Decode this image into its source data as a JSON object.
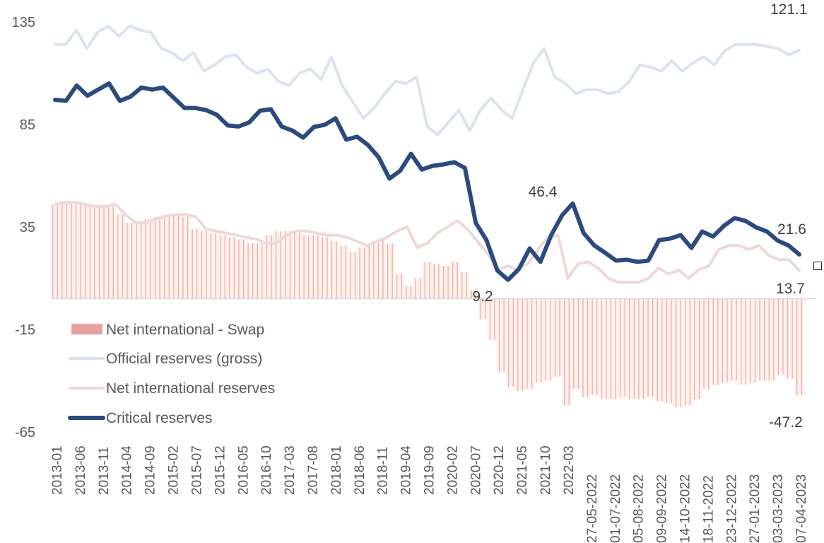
{
  "chart_data": {
    "type": "line",
    "title": "",
    "xlabel": "",
    "ylabel": "",
    "ylim": [
      -65,
      135
    ],
    "yticks": [
      135,
      85,
      35,
      -15,
      -65
    ],
    "grid": false,
    "legend_position": "bottom-left",
    "x_tick_labels": [
      "2013-01",
      "2013-06",
      "2013-11",
      "2014-04",
      "2014-09",
      "2015-02",
      "2015-07",
      "2015-12",
      "2016-05",
      "2016-10",
      "2017-03",
      "2017-08",
      "2018-01",
      "2018-06",
      "2018-11",
      "2019-04",
      "2019-09",
      "2020-02",
      "2020-07",
      "2020-12",
      "2021-05",
      "2021-10",
      "2022-03",
      "27-05-2022",
      "01-07-2022",
      "05-08-2022",
      "09-09-2022",
      "14-10-2022",
      "18-11-2022",
      "23-12-2022",
      "27-01-2023",
      "03-03-2023",
      "07-04-2023"
    ],
    "series": [
      {
        "name": "Net international - Swap",
        "kind": "bar",
        "color": "#e8a0a0",
        "values": [
          46,
          47,
          47,
          46,
          45,
          45,
          46,
          41,
          37,
          37,
          39,
          40,
          41,
          41,
          40,
          34,
          33,
          32,
          31,
          30,
          29,
          27,
          27,
          31,
          33,
          33,
          32,
          31,
          31,
          30,
          28,
          26,
          23,
          25,
          27,
          29,
          27,
          12,
          6,
          10,
          18,
          17,
          16,
          18,
          13,
          4,
          -10,
          -20,
          -36,
          -43,
          -45,
          -44,
          -41,
          -40,
          -38,
          -52,
          -44,
          -48,
          -47,
          -49,
          -49,
          -48,
          -49,
          -49,
          -48,
          -50,
          -51,
          -53,
          -52,
          -49,
          -44,
          -42,
          -41,
          -40,
          -42,
          -41,
          -40,
          -40,
          -37,
          -39,
          -47.2
        ]
      },
      {
        "name": "Official reserves (gross)",
        "kind": "line",
        "color": "#dce3ef",
        "values": [
          124,
          124,
          131,
          122,
          130,
          133,
          128,
          133,
          131,
          130,
          122,
          120,
          116,
          120,
          111,
          114,
          118,
          119,
          113,
          110,
          112,
          106,
          104,
          110,
          112,
          107,
          118,
          104,
          96,
          88,
          93,
          100,
          106,
          105,
          108,
          84,
          80,
          86,
          92,
          82,
          92,
          98,
          92,
          88,
          102,
          115,
          122,
          108,
          105,
          100,
          102,
          102,
          100,
          101,
          106,
          114,
          113,
          111,
          116,
          111,
          115,
          118,
          114,
          121,
          124,
          124,
          124,
          123,
          122,
          119,
          121.1
        ]
      },
      {
        "name": "Net international reserves",
        "kind": "line",
        "color": "#eed8d8",
        "values": [
          46,
          47,
          47,
          46,
          45,
          45,
          46,
          41,
          37,
          37,
          39,
          40,
          41,
          41,
          40,
          34,
          33,
          32,
          31,
          30,
          29,
          27,
          27,
          31,
          33,
          33,
          32,
          31,
          31,
          30,
          28,
          26,
          28,
          30,
          33,
          35,
          25,
          27,
          32,
          35,
          38,
          34,
          28,
          22,
          14,
          16,
          14,
          17,
          24,
          30,
          31,
          10,
          17,
          18,
          15,
          10,
          8,
          8,
          8,
          10,
          15,
          12,
          14,
          10,
          14,
          16,
          24,
          26,
          26,
          24,
          26,
          21,
          19,
          19,
          13.7
        ]
      },
      {
        "name": "Critical reserves",
        "kind": "line",
        "color": "#2b4a7e",
        "values": [
          97,
          96.5,
          104,
          99,
          102,
          105,
          96.5,
          98.6,
          103,
          102,
          103,
          98,
          93,
          93,
          92,
          89.7,
          84.5,
          84,
          86,
          91.7,
          92.4,
          84,
          82,
          78.6,
          83.8,
          84.8,
          88,
          77.6,
          79,
          75,
          69,
          58.6,
          62.4,
          70.7,
          63,
          64.8,
          65.5,
          66.6,
          63.8,
          37,
          28.6,
          13.8,
          9.2,
          14.5,
          24.5,
          18,
          31,
          40.7,
          46.4,
          32,
          26,
          22.4,
          18.6,
          19,
          18,
          18.6,
          28.6,
          29.3,
          31,
          24.8,
          32.8,
          30.3,
          35.5,
          39.3,
          38,
          34.8,
          32.8,
          28.3,
          26,
          21.6
        ]
      }
    ],
    "annotations": [
      {
        "series": "Official reserves (gross)",
        "text": "121.1",
        "position": "end"
      },
      {
        "series": "Critical reserves",
        "text": "46.4",
        "position": "peak 2021-10"
      },
      {
        "series": "Critical reserves",
        "text": "9.2",
        "position": "trough 2020-07"
      },
      {
        "series": "Critical reserves",
        "text": "21.6",
        "position": "end"
      },
      {
        "series": "Net international reserves",
        "text": "13.7",
        "position": "end"
      },
      {
        "series": "Net international - Swap",
        "text": "-47.2",
        "position": "end"
      }
    ]
  },
  "legend": [
    {
      "label": "Net international - Swap",
      "kind": "bar",
      "color": "#e8a0a0"
    },
    {
      "label": "Official reserves (gross)",
      "kind": "line",
      "color": "#dce3ef"
    },
    {
      "label": "Net international reserves",
      "kind": "line",
      "color": "#eed8d8"
    },
    {
      "label": "Critical reserves",
      "kind": "line",
      "color": "#2b4a7e"
    }
  ]
}
